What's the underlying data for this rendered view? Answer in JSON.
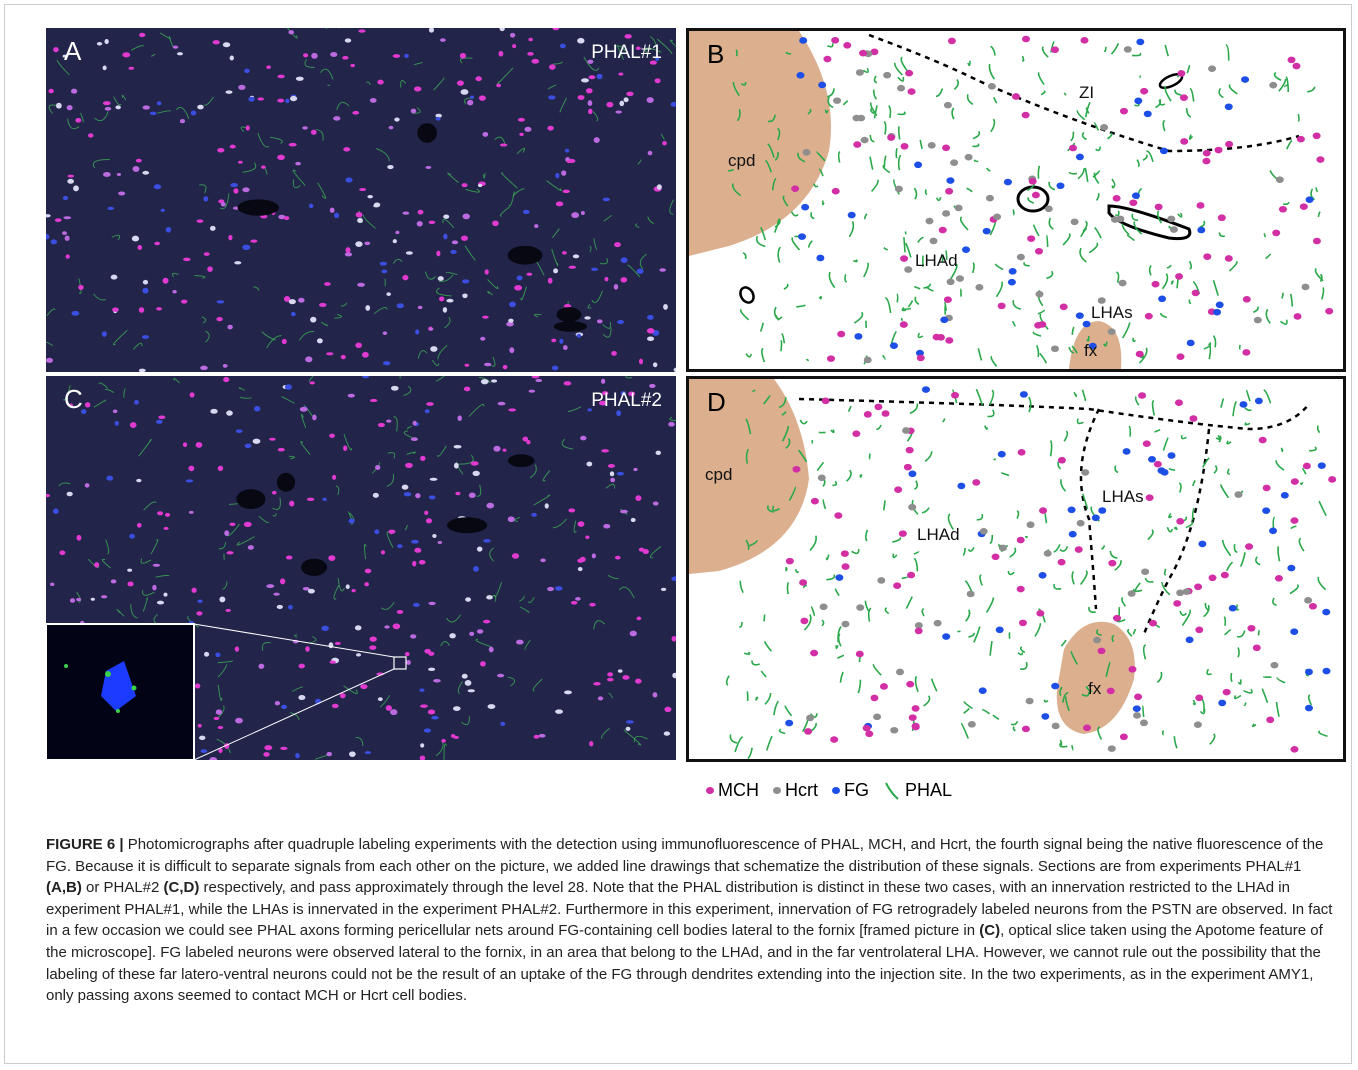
{
  "panels": [
    {
      "label": "A",
      "tag": "PHAL#1"
    },
    {
      "label": "B",
      "regions": [
        "cpd",
        "ZI",
        "LHAd",
        "LHAs",
        "fx"
      ]
    },
    {
      "label": "C",
      "tag": "PHAL#2"
    },
    {
      "label": "D",
      "regions": [
        "cpd",
        "LHAd",
        "LHAs",
        "fx"
      ]
    }
  ],
  "legend": [
    "MCH",
    "Hcrt",
    "FG",
    "PHAL"
  ],
  "caption": {
    "label": "FIGURE 6 |",
    "segments": [
      {
        "text": " Photomicrographs after quadruple labeling experiments with the detection using immunofluorescence of PHAL, MCH, and Hcrt, the fourth signal being the native fluorescence of the FG. Because it is difficult to separate signals from each other on the picture, we added line drawings that schematize the distribution of these signals. Sections are from experiments PHAL#1 ",
        "bold": false
      },
      {
        "text": "(A,B)",
        "bold": true
      },
      {
        "text": " or PHAL#2 ",
        "bold": false
      },
      {
        "text": "(C,D)",
        "bold": true
      },
      {
        "text": " respectively, and pass approximately through the level 28. Note that the PHAL distribution is distinct in these two cases, with an innervation restricted to the LHAd in experiment PHAL#1, while the LHAs is innervated in the experiment PHAL#2. Furthermore in this experiment, innervation of FG retrogradely labeled neurons from the PSTN are observed. In fact in a few occasion we could see PHAL axons forming pericellular nets around FG-containing cell bodies lateral to the fornix [framed picture in ",
        "bold": false
      },
      {
        "text": "(C)",
        "bold": true
      },
      {
        "text": ", optical slice taken using the Apotome feature of the microscope]. FG labeled neurons were observed lateral to the fornix, in an area that belong to the LHAd, and in the far ventrolateral LHA. However, we cannot rule out the possibility that the labeling of these far latero-ventral neurons could not be the result of an uptake of the FG through dendrites extending into the injection site. In the two experiments, as in the experiment AMY1, only passing axons seemed to contact MCH or Hcrt cell bodies.",
        "bold": false
      }
    ]
  }
}
